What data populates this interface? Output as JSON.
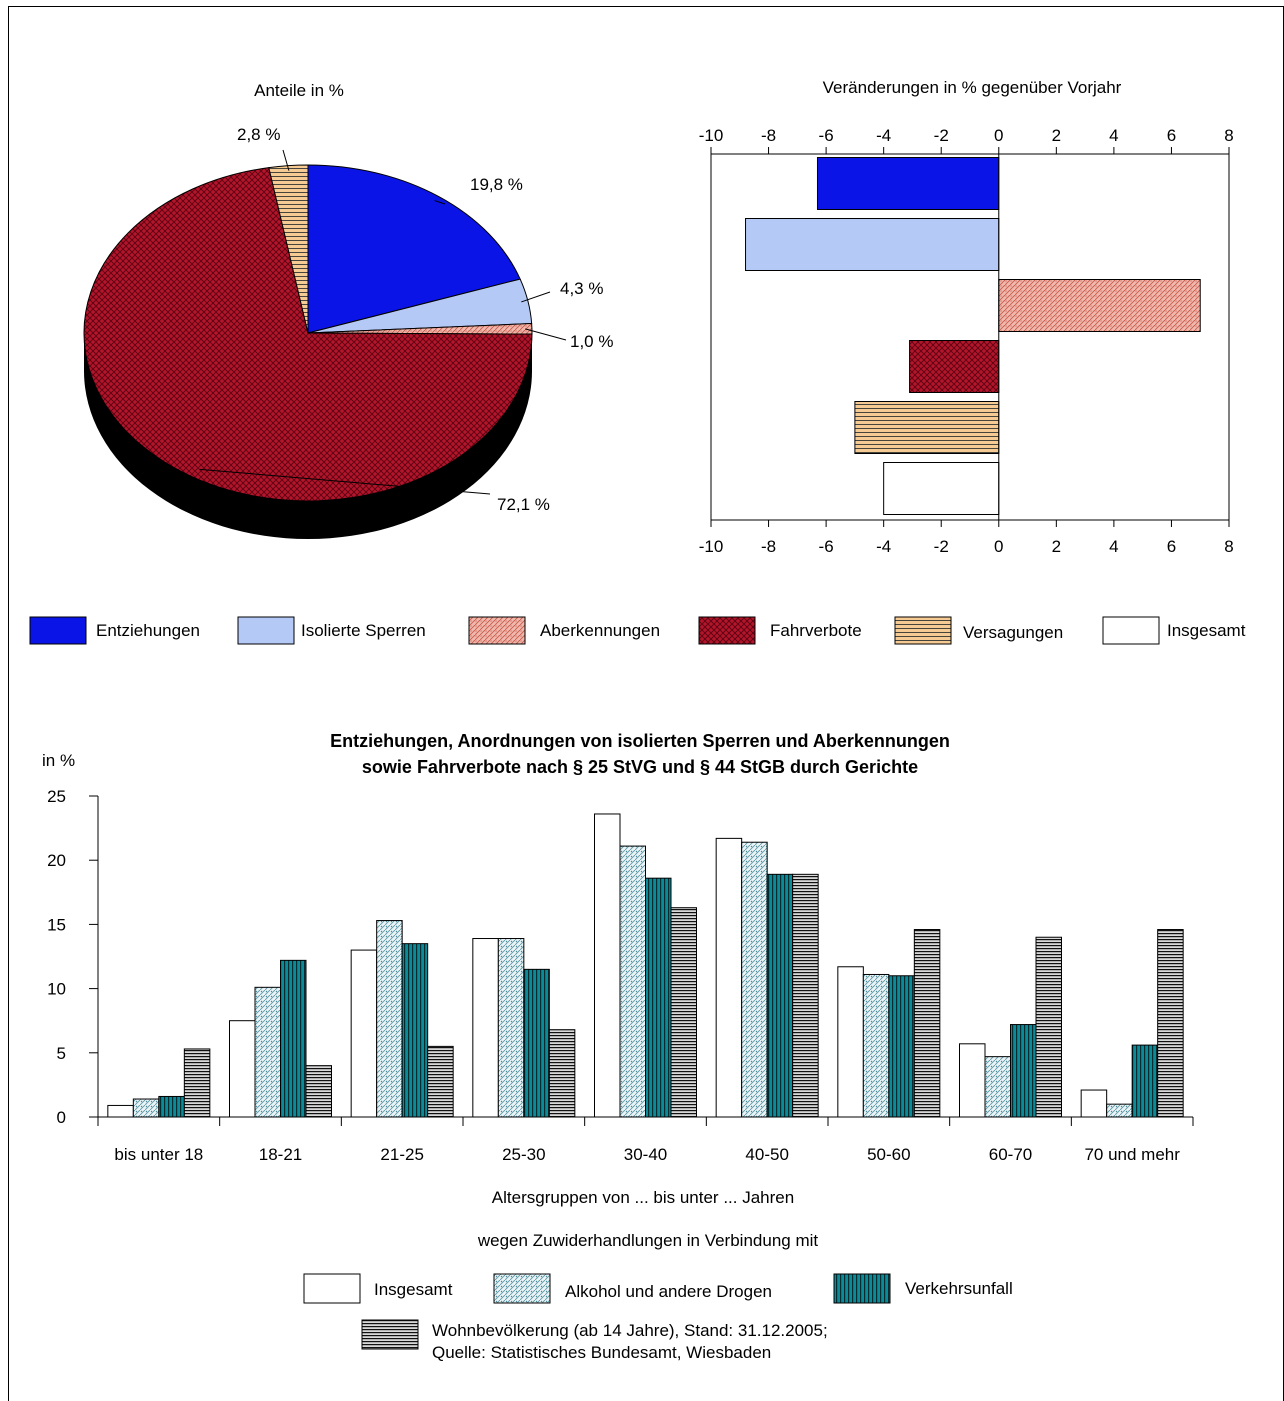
{
  "chart_data": [
    {
      "type": "pie",
      "title": "Anteile in %",
      "categories": [
        "Entziehungen",
        "Isolierte Sperren",
        "Aberkennungen",
        "Fahrverbote",
        "Versagungen"
      ],
      "values": [
        19.8,
        4.3,
        1.0,
        72.1,
        2.8
      ],
      "value_labels": [
        "19,8 %",
        "4,3 %",
        "1,0 %",
        "72,1 %",
        "2,8 %"
      ],
      "style": "3d"
    },
    {
      "type": "bar",
      "orientation": "horizontal",
      "title": "Veränderungen in % gegenüber Vorjahr",
      "categories": [
        "Entziehungen",
        "Isolierte Sperren",
        "Aberkennungen",
        "Fahrverbote",
        "Versagungen",
        "Insgesamt"
      ],
      "values": [
        -6.3,
        -8.8,
        7.0,
        -3.1,
        -5.0,
        -4.0
      ],
      "xlim": [
        -10,
        8
      ],
      "xticks": [
        -10,
        -8,
        -6,
        -4,
        -2,
        0,
        2,
        4,
        6,
        8
      ],
      "grid": false
    },
    {
      "type": "bar",
      "title": "Entziehungen, Anordnungen von isolierten Sperren und Aberkennungen sowie Fahrverbote nach § 25 StVG und § 44 StGB durch Gerichte",
      "title_lines": [
        "Entziehungen, Anordnungen von isolierten Sperren und Aberkennungen",
        "sowie Fahrverbote nach § 25 StVG und § 44 StGB durch Gerichte"
      ],
      "ylabel": "in %",
      "xlabel": "Altersgruppen von ... bis unter ... Jahren",
      "subtitle": "wegen Zuwiderhandlungen in Verbindung mit",
      "ylim": [
        0,
        25
      ],
      "yticks": [
        0,
        5,
        10,
        15,
        20,
        25
      ],
      "categories": [
        "bis unter 18",
        "18-21",
        "21-25",
        "25-30",
        "30-40",
        "40-50",
        "50-60",
        "60-70",
        "70 und mehr"
      ],
      "series": [
        {
          "name": "Insgesamt",
          "values": [
            0.9,
            7.5,
            13.0,
            13.9,
            23.6,
            21.7,
            11.7,
            5.7,
            2.1
          ]
        },
        {
          "name": "Alkohol und andere Drogen",
          "values": [
            1.4,
            10.1,
            15.3,
            13.9,
            21.1,
            21.4,
            11.1,
            4.7,
            1.0
          ]
        },
        {
          "name": "Verkehrsunfall",
          "values": [
            1.6,
            12.2,
            13.5,
            11.5,
            18.6,
            18.9,
            11.0,
            7.2,
            5.6
          ]
        },
        {
          "name": "Wohnbevölkerung (ab 14 Jahre), Stand: 31.12.2005;",
          "values": [
            5.3,
            4.0,
            5.5,
            6.8,
            16.3,
            18.9,
            14.6,
            14.0,
            14.6
          ]
        }
      ],
      "source_note": "Quelle: Statistisches Bundesamt, Wiesbaden"
    }
  ],
  "legend_top": [
    {
      "label": "Entziehungen",
      "fill": "blue"
    },
    {
      "label": "Isolierte Sperren",
      "fill": "lightblue"
    },
    {
      "label": "Aberkennungen",
      "fill": "salmonDots"
    },
    {
      "label": "Fahrverbote",
      "fill": "redCheck"
    },
    {
      "label": "Versagungen",
      "fill": "orangeStripe"
    },
    {
      "label": "Insgesamt",
      "fill": "white"
    }
  ],
  "colors": {
    "entziehungen": "#0a14e6",
    "isolierte_sperren": "#b5c9f7",
    "aberkennungen": "#e9a69a",
    "fahrverbote": "#b3152a",
    "versagungen": "#f6cb93",
    "alkohol": "#c9e3ea",
    "verkehrsunfall": "#0d7f8c",
    "wohnbevoelkerung": "#333333"
  }
}
